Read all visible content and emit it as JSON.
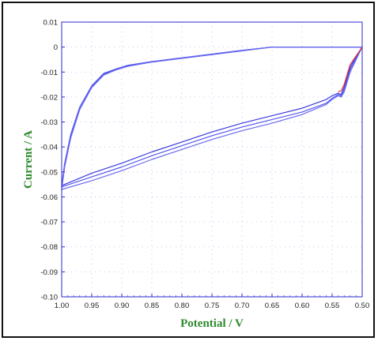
{
  "chart_data": {
    "type": "line",
    "title": "",
    "xlabel": "Potential / V",
    "ylabel": "Current / A",
    "xlim": [
      1.0,
      0.5
    ],
    "ylim": [
      -0.1,
      0.01
    ],
    "x_ticks": [
      "1.00",
      "0.95",
      "0.90",
      "0.85",
      "0.80",
      "0.75",
      "0.70",
      "0.65",
      "0.60",
      "0.55",
      "0.50"
    ],
    "y_ticks": [
      "0.01",
      "0",
      "-0.01",
      "-0.02",
      "-0.03",
      "-0.04",
      "-0.05",
      "-0.06",
      "-0.07",
      "-0.08",
      "-0.09",
      "-0.10"
    ],
    "grid": true,
    "colors": {
      "series_main": "#3333dd",
      "series_alt": "#e03030",
      "axis_title": "#2e8b2e",
      "grid": "#b8b8ee"
    },
    "series": [
      {
        "color": "#3a3ae0",
        "x": [
          0.5,
          0.52,
          0.53,
          0.535,
          0.54,
          0.55,
          0.56,
          0.6,
          0.65,
          0.7,
          0.75,
          0.8,
          0.85,
          0.9,
          0.95,
          1.0,
          0.995,
          0.985,
          0.97,
          0.95,
          0.93,
          0.91,
          0.89,
          0.85,
          0.8,
          0.75,
          0.7,
          0.65,
          0.6,
          0.55,
          0.5
        ],
        "y": [
          0.0,
          -0.008,
          -0.016,
          -0.019,
          -0.0185,
          -0.0195,
          -0.021,
          -0.0245,
          -0.0275,
          -0.0305,
          -0.034,
          -0.038,
          -0.042,
          -0.0465,
          -0.0505,
          -0.0555,
          -0.047,
          -0.036,
          -0.025,
          -0.016,
          -0.011,
          -0.009,
          -0.0075,
          -0.006,
          -0.0045,
          -0.003,
          -0.0015,
          0.0,
          0.0,
          0.0,
          0.0
        ]
      },
      {
        "color": "#5555ee",
        "x": [
          0.5,
          0.52,
          0.53,
          0.535,
          0.54,
          0.55,
          0.56,
          0.6,
          0.65,
          0.7,
          0.75,
          0.8,
          0.85,
          0.9,
          0.95,
          1.0,
          0.995,
          0.985,
          0.97,
          0.95,
          0.93,
          0.91,
          0.89,
          0.85,
          0.8,
          0.75,
          0.7,
          0.65,
          0.6,
          0.55,
          0.5
        ],
        "y": [
          0.0,
          -0.009,
          -0.017,
          -0.0195,
          -0.019,
          -0.0205,
          -0.0225,
          -0.026,
          -0.029,
          -0.032,
          -0.0355,
          -0.0395,
          -0.0435,
          -0.048,
          -0.052,
          -0.056,
          -0.0465,
          -0.035,
          -0.024,
          -0.0155,
          -0.0105,
          -0.0088,
          -0.0073,
          -0.0058,
          -0.0043,
          -0.0028,
          -0.0013,
          0.0,
          0.0,
          0.0,
          0.0
        ]
      },
      {
        "color": "#6a6af0",
        "x": [
          0.5,
          0.52,
          0.53,
          0.535,
          0.54,
          0.55,
          0.56,
          0.6,
          0.65,
          0.7,
          0.75,
          0.8,
          0.85,
          0.9,
          0.95,
          1.0,
          0.995,
          0.985,
          0.97,
          0.95,
          0.93,
          0.91,
          0.89,
          0.85,
          0.8,
          0.75,
          0.7,
          0.65,
          0.6,
          0.55,
          0.5
        ],
        "y": [
          0.0,
          -0.01,
          -0.018,
          -0.02,
          -0.0195,
          -0.021,
          -0.023,
          -0.027,
          -0.0305,
          -0.0335,
          -0.037,
          -0.041,
          -0.045,
          -0.0495,
          -0.0535,
          -0.057,
          -0.048,
          -0.0365,
          -0.025,
          -0.0162,
          -0.0112,
          -0.0092,
          -0.0077,
          -0.006,
          -0.0045,
          -0.003,
          -0.0015,
          0.0,
          0.0,
          0.0,
          0.0
        ]
      },
      {
        "color": "#e03030",
        "x": [
          0.5,
          0.52,
          0.53,
          0.535,
          0.54
        ],
        "y": [
          0.0,
          -0.007,
          -0.015,
          -0.0175,
          -0.018
        ]
      }
    ]
  }
}
